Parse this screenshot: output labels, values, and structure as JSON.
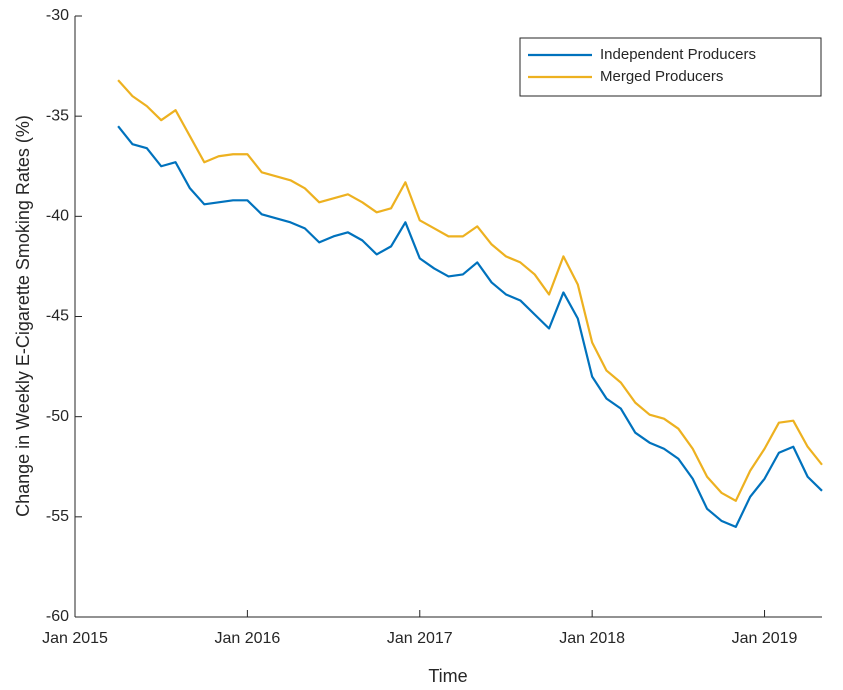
{
  "chart_data": {
    "type": "line",
    "xlabel": "Time",
    "ylabel": "Change in Weekly E-Cigarette Smoking Rates (%)",
    "x": [
      "2015-04",
      "2015-05",
      "2015-06",
      "2015-07",
      "2015-08",
      "2015-09",
      "2015-10",
      "2015-11",
      "2015-12",
      "2016-01",
      "2016-02",
      "2016-03",
      "2016-04",
      "2016-05",
      "2016-06",
      "2016-07",
      "2016-08",
      "2016-09",
      "2016-10",
      "2016-11",
      "2016-12",
      "2017-01",
      "2017-02",
      "2017-03",
      "2017-04",
      "2017-05",
      "2017-06",
      "2017-07",
      "2017-08",
      "2017-09",
      "2017-10",
      "2017-11",
      "2017-12",
      "2018-01",
      "2018-02",
      "2018-03",
      "2018-04",
      "2018-05",
      "2018-06",
      "2018-07",
      "2018-08",
      "2018-09",
      "2018-10",
      "2018-11",
      "2018-12",
      "2019-01",
      "2019-02",
      "2019-03",
      "2019-04",
      "2019-05"
    ],
    "series": [
      {
        "name": "Independent Producers",
        "color": "#0072bd",
        "values": [
          -35.5,
          -36.4,
          -36.6,
          -37.5,
          -37.3,
          -38.6,
          -39.4,
          -39.3,
          -39.2,
          -39.2,
          -39.9,
          -40.1,
          -40.3,
          -40.6,
          -41.3,
          -41.0,
          -40.8,
          -41.2,
          -41.9,
          -41.5,
          -40.3,
          -42.1,
          -42.6,
          -43.0,
          -42.9,
          -42.3,
          -43.3,
          -43.9,
          -44.2,
          -44.9,
          -45.6,
          -43.8,
          -45.1,
          -48.0,
          -49.1,
          -49.6,
          -50.8,
          -51.3,
          -51.6,
          -52.1,
          -53.1,
          -54.6,
          -55.2,
          -55.5,
          -54.0,
          -53.1,
          -51.8,
          -51.5,
          -53.0,
          -53.7
        ]
      },
      {
        "name": "Merged Producers",
        "color": "#edb120",
        "values": [
          -33.2,
          -34.0,
          -34.5,
          -35.2,
          -34.7,
          -36.0,
          -37.3,
          -37.0,
          -36.9,
          -36.9,
          -37.8,
          -38.0,
          -38.2,
          -38.6,
          -39.3,
          -39.1,
          -38.9,
          -39.3,
          -39.8,
          -39.6,
          -38.3,
          -40.2,
          -40.6,
          -41.0,
          -41.0,
          -40.5,
          -41.4,
          -42.0,
          -42.3,
          -42.9,
          -43.9,
          -42.0,
          -43.4,
          -46.3,
          -47.7,
          -48.3,
          -49.3,
          -49.9,
          -50.1,
          -50.6,
          -51.6,
          -53.0,
          -53.8,
          -54.2,
          -52.7,
          -51.6,
          -50.3,
          -50.2,
          -51.5,
          -52.4
        ]
      }
    ],
    "xlim": [
      "2015-01",
      "2019-05"
    ],
    "xticks": [
      {
        "value": "2015-01",
        "label": "Jan 2015"
      },
      {
        "value": "2016-01",
        "label": "Jan 2016"
      },
      {
        "value": "2017-01",
        "label": "Jan 2017"
      },
      {
        "value": "2018-01",
        "label": "Jan 2018"
      },
      {
        "value": "2019-01",
        "label": "Jan 2019"
      }
    ],
    "ylim": [
      -60,
      -30
    ],
    "yticks": [
      -60,
      -55,
      -50,
      -45,
      -40,
      -35,
      -30
    ],
    "legend": "top-right"
  }
}
